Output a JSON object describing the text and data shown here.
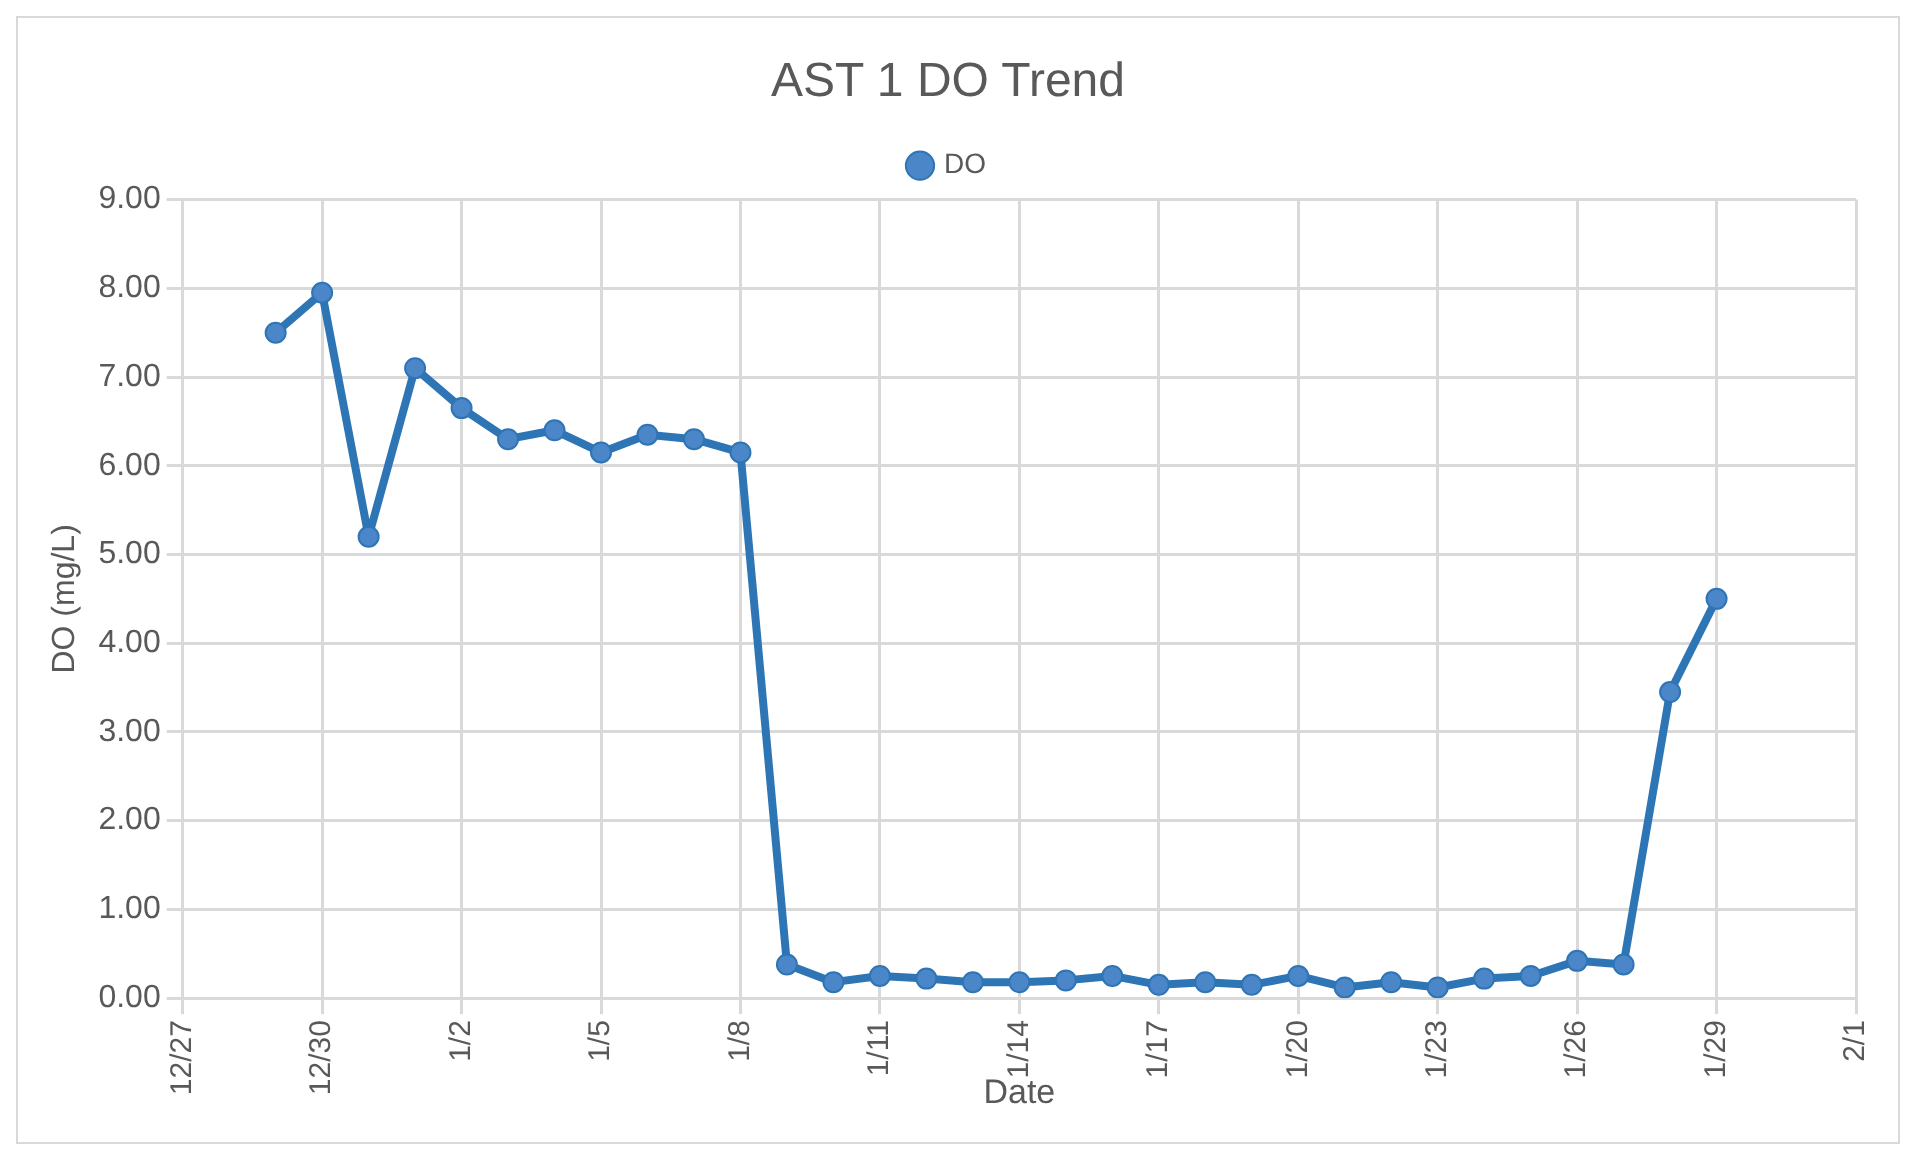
{
  "chart_data": {
    "type": "line",
    "title": "AST 1 DO Trend",
    "xlabel": "Date",
    "ylabel": "DO (mg/L)",
    "categories": [
      "12/27",
      null,
      null,
      "12/30",
      null,
      null,
      "1/2",
      null,
      null,
      "1/5",
      null,
      null,
      "1/8",
      null,
      null,
      "1/11",
      null,
      null,
      "1/14",
      null,
      null,
      "1/17",
      null,
      null,
      "1/20",
      null,
      null,
      "1/23",
      null,
      null,
      "1/26",
      null,
      null,
      "1/29",
      null,
      null,
      "2/1"
    ],
    "series": [
      {
        "name": "DO",
        "color": "#2e75b6",
        "values": [
          null,
          null,
          7.5,
          7.95,
          5.2,
          7.1,
          6.65,
          6.3,
          6.4,
          6.15,
          6.35,
          6.3,
          6.15,
          0.38,
          0.18,
          0.25,
          0.22,
          0.18,
          0.18,
          0.2,
          0.25,
          0.15,
          0.18,
          0.15,
          0.25,
          0.12,
          0.18,
          0.12,
          0.22,
          0.25,
          0.42,
          0.38,
          3.45,
          4.5,
          null,
          null,
          null
        ]
      }
    ],
    "ylim": [
      0,
      9
    ],
    "yticks": [
      {
        "value": 0,
        "label": "0.00"
      },
      {
        "value": 1,
        "label": "1.00"
      },
      {
        "value": 2,
        "label": "2.00"
      },
      {
        "value": 3,
        "label": "3.00"
      },
      {
        "value": 4,
        "label": "4.00"
      },
      {
        "value": 5,
        "label": "5.00"
      },
      {
        "value": 6,
        "label": "6.00"
      },
      {
        "value": 7,
        "label": "7.00"
      },
      {
        "value": 8,
        "label": "8.00"
      },
      {
        "value": 9,
        "label": "9.00"
      }
    ],
    "grid": true,
    "legend": "top",
    "marker": "circle",
    "line_style": "solid"
  }
}
